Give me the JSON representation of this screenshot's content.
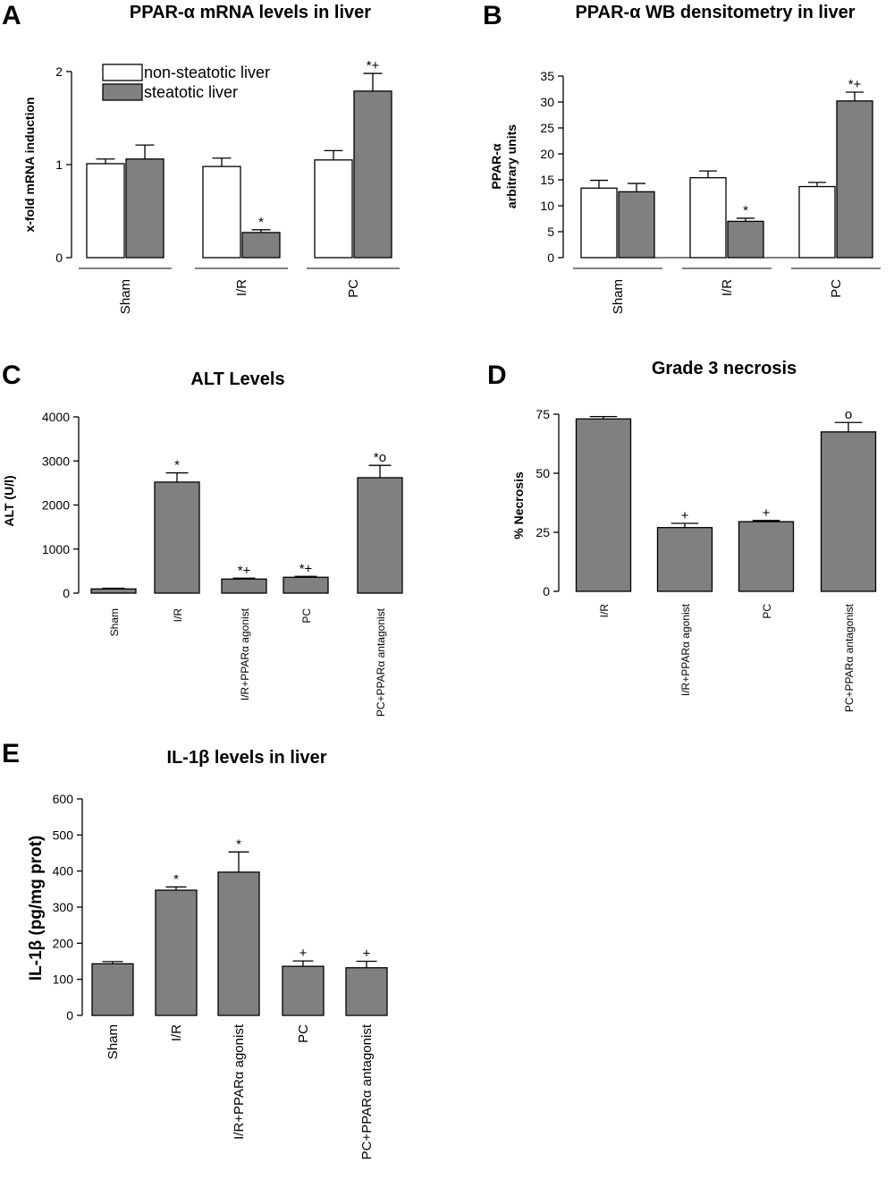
{
  "colors": {
    "open": "#ffffff",
    "filled": "#808080",
    "stroke": "#000000"
  },
  "chart_data": [
    {
      "panel": "A",
      "type": "bar",
      "title": "PPAR-α mRNA levels in liver",
      "ylabel": "x-fold mRNA induction",
      "xlabel": "",
      "ylim": [
        0,
        2
      ],
      "yticks": [
        "0",
        "1",
        "2"
      ],
      "categories": [
        "Sham",
        "I/R",
        "PC"
      ],
      "legend": {
        "placement": "top-left",
        "entries": [
          "non-steatotic liver",
          "steatotic liver"
        ]
      },
      "series": [
        {
          "name": "non-steatotic liver",
          "color": "#ffffff",
          "values": [
            1.01,
            0.98,
            1.05
          ],
          "errors": [
            0.05,
            0.09,
            0.1
          ],
          "marks": [
            "",
            "",
            ""
          ]
        },
        {
          "name": "steatotic liver",
          "color": "#808080",
          "values": [
            1.06,
            0.27,
            1.79
          ],
          "errors": [
            0.15,
            0.03,
            0.19
          ],
          "marks": [
            "",
            "*",
            "*+"
          ]
        }
      ]
    },
    {
      "panel": "B",
      "type": "bar",
      "title": "PPAR-α WB densitometry in liver",
      "ylabel": "PPAR-α\narbitrary units",
      "xlabel": "",
      "ylim": [
        0,
        35
      ],
      "yticks": [
        "0",
        "5",
        "10",
        "15",
        "20",
        "25",
        "30",
        "35"
      ],
      "categories": [
        "Sham",
        "I/R",
        "PC"
      ],
      "series": [
        {
          "name": "non-steatotic liver",
          "color": "#ffffff",
          "values": [
            13.4,
            15.4,
            13.7
          ],
          "errors": [
            1.5,
            1.3,
            0.8
          ],
          "marks": [
            "",
            "",
            ""
          ]
        },
        {
          "name": "steatotic liver",
          "color": "#808080",
          "values": [
            12.7,
            7.0,
            30.2
          ],
          "errors": [
            1.6,
            0.6,
            1.7
          ],
          "marks": [
            "",
            "*",
            "*+"
          ]
        }
      ]
    },
    {
      "panel": "C",
      "type": "bar",
      "title": "ALT Levels",
      "ylabel": "ALT (U/l)",
      "xlabel": "",
      "ylim": [
        0,
        4000
      ],
      "yticks": [
        "0",
        "1000",
        "2000",
        "3000",
        "4000"
      ],
      "categories": [
        "Sham",
        "I/R",
        "I/R+PPARα agonist",
        "PC",
        "PC+PPARα antagonist"
      ],
      "series": [
        {
          "name": "",
          "color": "#808080",
          "values": [
            95,
            2520,
            320,
            360,
            2620
          ],
          "errors": [
            15,
            210,
            20,
            20,
            280
          ],
          "marks": [
            "",
            "*",
            "*+",
            "*+",
            "*o"
          ]
        }
      ]
    },
    {
      "panel": "D",
      "type": "bar",
      "title": "Grade 3 necrosis",
      "ylabel": "% Necrosis",
      "xlabel": "",
      "ylim": [
        0,
        75
      ],
      "yticks": [
        "0",
        "25",
        "50",
        "75"
      ],
      "categories": [
        "I/R",
        "I/R+PPARα agonist",
        "PC",
        "PC+PPARα antagonist"
      ],
      "series": [
        {
          "name": "",
          "color": "#808080",
          "values": [
            73,
            27,
            29.5,
            67.5
          ],
          "errors": [
            1,
            1.8,
            0.5,
            4
          ],
          "marks": [
            "",
            "+",
            "+",
            "o"
          ]
        }
      ]
    },
    {
      "panel": "E",
      "type": "bar",
      "title": "IL-1β levels in liver",
      "ylabel": "IL-1β (pg/mg prot)",
      "xlabel": "",
      "ylim": [
        0,
        600
      ],
      "yticks": [
        "0",
        "100",
        "200",
        "300",
        "400",
        "500",
        "600"
      ],
      "categories": [
        "Sham",
        "I/R",
        "I/R+PPARα agonist",
        "PC",
        "PC+PPARα antagonist"
      ],
      "series": [
        {
          "name": "",
          "color": "#808080",
          "values": [
            143,
            347,
            397,
            136,
            132
          ],
          "errors": [
            6,
            9,
            56,
            15,
            18
          ],
          "marks": [
            "",
            "*",
            "*",
            "+",
            "+"
          ]
        }
      ]
    }
  ]
}
